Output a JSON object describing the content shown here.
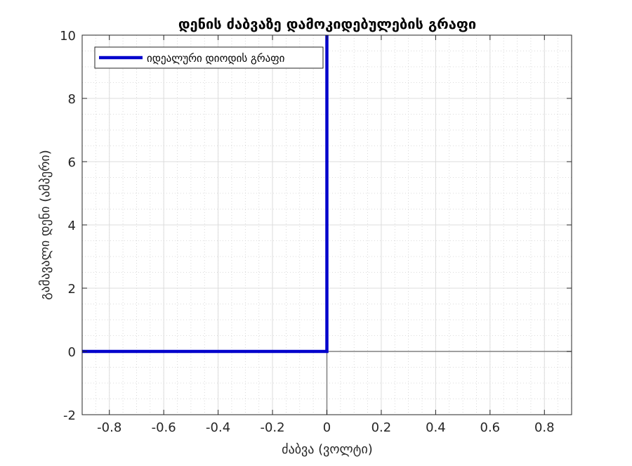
{
  "chart_data": {
    "type": "line",
    "title": "დენის ძაბვაზე დამოკიდებულების გრაფი",
    "xlabel": "ძაბვა (ვოლტი)",
    "ylabel": "გამავალი დენი (ამპერი)",
    "xlim": [
      -0.9,
      0.9
    ],
    "ylim": [
      -2,
      10
    ],
    "xticks": [
      -0.8,
      -0.6,
      -0.4,
      -0.2,
      0,
      0.2,
      0.4,
      0.6,
      0.8
    ],
    "yticks": [
      -2,
      0,
      2,
      4,
      6,
      8,
      10
    ],
    "xtick_labels": [
      "-0.8",
      "-0.6",
      "-0.4",
      "-0.2",
      "0",
      "0.2",
      "0.4",
      "0.6",
      "0.8"
    ],
    "ytick_labels": [
      "-2",
      "0",
      "2",
      "4",
      "6",
      "8",
      "10"
    ],
    "grid": true,
    "minor_grid": true,
    "legend_position": "top-left",
    "reference_lines": {
      "x": 0,
      "y": 0,
      "color": "#808080"
    },
    "series": [
      {
        "name": "იდეალური დიოდის გრაფი",
        "color": "#0000cc",
        "x": [
          -0.9,
          0,
          0
        ],
        "y": [
          0,
          0,
          10
        ]
      }
    ]
  }
}
